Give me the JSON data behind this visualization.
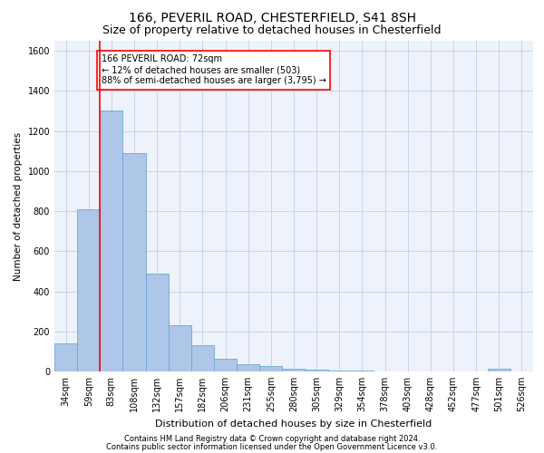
{
  "title1": "166, PEVERIL ROAD, CHESTERFIELD, S41 8SH",
  "title2": "Size of property relative to detached houses in Chesterfield",
  "xlabel": "Distribution of detached houses by size in Chesterfield",
  "ylabel": "Number of detached properties",
  "categories": [
    "34sqm",
    "59sqm",
    "83sqm",
    "108sqm",
    "132sqm",
    "157sqm",
    "182sqm",
    "206sqm",
    "231sqm",
    "255sqm",
    "280sqm",
    "305sqm",
    "329sqm",
    "354sqm",
    "378sqm",
    "403sqm",
    "428sqm",
    "452sqm",
    "477sqm",
    "501sqm",
    "526sqm"
  ],
  "values": [
    140,
    810,
    1300,
    1090,
    490,
    230,
    130,
    65,
    38,
    25,
    15,
    10,
    5,
    3,
    2,
    2,
    2,
    2,
    2,
    15,
    2
  ],
  "bar_color": "#aec6e8",
  "bar_edge_color": "#6aaad4",
  "annotation_text": "166 PEVERIL ROAD: 72sqm\n← 12% of detached houses are smaller (503)\n88% of semi-detached houses are larger (3,795) →",
  "annotation_box_color": "white",
  "annotation_border_color": "red",
  "vline_color": "red",
  "vline_x": 1.5,
  "ylim": [
    0,
    1650
  ],
  "yticks": [
    0,
    200,
    400,
    600,
    800,
    1000,
    1200,
    1400,
    1600
  ],
  "footer1": "Contains HM Land Registry data © Crown copyright and database right 2024.",
  "footer2": "Contains public sector information licensed under the Open Government Licence v3.0.",
  "background_color": "#eef2fb",
  "grid_color": "#c8d4e8",
  "title1_fontsize": 10,
  "title2_fontsize": 9,
  "xlabel_fontsize": 8,
  "ylabel_fontsize": 7.5,
  "tick_fontsize": 7,
  "annot_fontsize": 7,
  "footer_fontsize": 6
}
